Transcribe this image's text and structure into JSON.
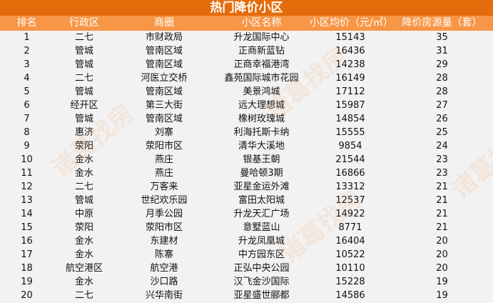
{
  "title": "热门降价小区",
  "watermark": "诸葛找房",
  "colors": {
    "title_bg": "#e46c0a",
    "header_bg": "#f79646",
    "body_bg": "#f2f2f2"
  },
  "columns": [
    "排名",
    "行政区",
    "商圈",
    "小区名称",
    "小区均价（元/㎡）",
    "降价房源量（套）"
  ],
  "rows": [
    [
      "1",
      "二七",
      "市财政局",
      "升龙国际中心",
      "15143",
      "35"
    ],
    [
      "2",
      "管城",
      "管南区域",
      "正商新蓝钻",
      "16436",
      "31"
    ],
    [
      "3",
      "管城",
      "管南区域",
      "正商幸福港湾",
      "14238",
      "29"
    ],
    [
      "4",
      "二七",
      "河医立交桥",
      "鑫苑国际城市花园",
      "16149",
      "28"
    ],
    [
      "5",
      "管城",
      "管南区域",
      "美景鸿城",
      "17112",
      "28"
    ],
    [
      "6",
      "经开区",
      "第三大街",
      "远大理想城",
      "15987",
      "27"
    ],
    [
      "7",
      "管城",
      "管南区域",
      "橡树玫瑰城",
      "14854",
      "26"
    ],
    [
      "8",
      "惠济",
      "刘寨",
      "利海托斯卡纳",
      "15555",
      "25"
    ],
    [
      "9",
      "荥阳",
      "荥阳市区",
      "清华大溪地",
      "9854",
      "24"
    ],
    [
      "10",
      "金水",
      "燕庄",
      "银基王朝",
      "21544",
      "23"
    ],
    [
      "11",
      "金水",
      "燕庄",
      "曼哈顿3期",
      "16866",
      "23"
    ],
    [
      "12",
      "二七",
      "万客来",
      "亚星金运外滩",
      "13312",
      "21"
    ],
    [
      "13",
      "管城",
      "世纪欢乐园",
      "富田太阳城",
      "12537",
      "21"
    ],
    [
      "14",
      "中原",
      "月季公园",
      "升龙天汇广场",
      "14922",
      "21"
    ],
    [
      "15",
      "荥阳",
      "荥阳市区",
      "意墅蓝山",
      "8771",
      "21"
    ],
    [
      "16",
      "金水",
      "东建材",
      "升龙凤凰城",
      "16404",
      "20"
    ],
    [
      "17",
      "金水",
      "陈寨",
      "中方园东区",
      "10522",
      "20"
    ],
    [
      "18",
      "航空港区",
      "航空港",
      "正弘中央公园",
      "10110",
      "20"
    ],
    [
      "19",
      "金水",
      "沙口路",
      "汉飞金沙国际",
      "15228",
      "19"
    ],
    [
      "20",
      "二七",
      "兴华南街",
      "亚星盛世郦都",
      "14586",
      "19"
    ]
  ]
}
